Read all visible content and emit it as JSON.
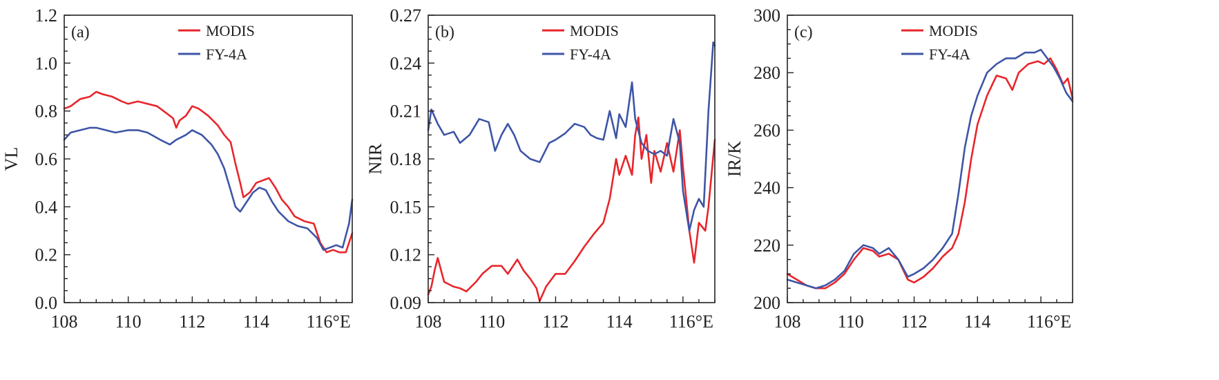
{
  "colors": {
    "modis": "#e8252b",
    "fy4a": "#3d55a6",
    "axis": "#222222"
  },
  "chart_data": [
    {
      "type": "line",
      "panel_label": "(a)",
      "xlabel": "",
      "ylabel": "VL",
      "xlim": [
        108,
        117
      ],
      "ylim": [
        0.0,
        1.2
      ],
      "x_ticks": [
        108,
        110,
        112,
        114,
        116
      ],
      "x_tick_labels": [
        "108",
        "110",
        "112",
        "114",
        "116°E"
      ],
      "y_ticks": [
        0.0,
        0.2,
        0.4,
        0.6,
        0.8,
        1.0,
        1.2
      ],
      "y_tick_labels": [
        "0.0",
        "0.2",
        "0.4",
        "0.6",
        "0.8",
        "1.0",
        "1.2"
      ],
      "grid": false,
      "legend_position": "top-center",
      "series": [
        {
          "name": "MODIS",
          "color": "#e8252b",
          "points": [
            [
              108.0,
              0.81
            ],
            [
              108.2,
              0.82
            ],
            [
              108.5,
              0.85
            ],
            [
              108.8,
              0.86
            ],
            [
              109.0,
              0.88
            ],
            [
              109.2,
              0.87
            ],
            [
              109.5,
              0.86
            ],
            [
              109.8,
              0.84
            ],
            [
              110.0,
              0.83
            ],
            [
              110.3,
              0.84
            ],
            [
              110.6,
              0.83
            ],
            [
              110.9,
              0.82
            ],
            [
              111.2,
              0.79
            ],
            [
              111.4,
              0.77
            ],
            [
              111.5,
              0.73
            ],
            [
              111.6,
              0.76
            ],
            [
              111.8,
              0.78
            ],
            [
              112.0,
              0.82
            ],
            [
              112.2,
              0.81
            ],
            [
              112.5,
              0.78
            ],
            [
              112.8,
              0.74
            ],
            [
              113.0,
              0.7
            ],
            [
              113.2,
              0.67
            ],
            [
              113.35,
              0.58
            ],
            [
              113.5,
              0.5
            ],
            [
              113.6,
              0.44
            ],
            [
              113.8,
              0.46
            ],
            [
              114.0,
              0.5
            ],
            [
              114.2,
              0.51
            ],
            [
              114.4,
              0.52
            ],
            [
              114.6,
              0.48
            ],
            [
              114.8,
              0.43
            ],
            [
              115.0,
              0.4
            ],
            [
              115.2,
              0.36
            ],
            [
              115.5,
              0.34
            ],
            [
              115.8,
              0.33
            ],
            [
              116.0,
              0.25
            ],
            [
              116.2,
              0.21
            ],
            [
              116.4,
              0.22
            ],
            [
              116.6,
              0.21
            ],
            [
              116.8,
              0.21
            ],
            [
              117.0,
              0.29
            ]
          ]
        },
        {
          "name": "FY-4A",
          "color": "#3d55a6",
          "points": [
            [
              108.0,
              0.68
            ],
            [
              108.2,
              0.71
            ],
            [
              108.5,
              0.72
            ],
            [
              108.8,
              0.73
            ],
            [
              109.0,
              0.73
            ],
            [
              109.3,
              0.72
            ],
            [
              109.6,
              0.71
            ],
            [
              110.0,
              0.72
            ],
            [
              110.3,
              0.72
            ],
            [
              110.6,
              0.71
            ],
            [
              111.0,
              0.68
            ],
            [
              111.3,
              0.66
            ],
            [
              111.5,
              0.68
            ],
            [
              111.8,
              0.7
            ],
            [
              112.0,
              0.72
            ],
            [
              112.3,
              0.7
            ],
            [
              112.6,
              0.66
            ],
            [
              112.8,
              0.62
            ],
            [
              113.0,
              0.56
            ],
            [
              113.2,
              0.47
            ],
            [
              113.35,
              0.4
            ],
            [
              113.5,
              0.38
            ],
            [
              113.7,
              0.42
            ],
            [
              113.9,
              0.46
            ],
            [
              114.1,
              0.48
            ],
            [
              114.3,
              0.47
            ],
            [
              114.5,
              0.42
            ],
            [
              114.7,
              0.38
            ],
            [
              115.0,
              0.34
            ],
            [
              115.3,
              0.32
            ],
            [
              115.6,
              0.31
            ],
            [
              115.9,
              0.27
            ],
            [
              116.1,
              0.22
            ],
            [
              116.3,
              0.23
            ],
            [
              116.5,
              0.24
            ],
            [
              116.7,
              0.23
            ],
            [
              116.9,
              0.33
            ],
            [
              117.0,
              0.43
            ]
          ]
        }
      ]
    },
    {
      "type": "line",
      "panel_label": "(b)",
      "xlabel": "",
      "ylabel": "NIR",
      "xlim": [
        108,
        117
      ],
      "ylim": [
        0.09,
        0.27
      ],
      "x_ticks": [
        108,
        110,
        112,
        114,
        116
      ],
      "x_tick_labels": [
        "108",
        "110",
        "112",
        "114",
        "116°E"
      ],
      "y_ticks": [
        0.09,
        0.12,
        0.15,
        0.18,
        0.21,
        0.24,
        0.27
      ],
      "y_tick_labels": [
        "0.09",
        "0.12",
        "0.15",
        "0.18",
        "0.21",
        "0.24",
        "0.27"
      ],
      "grid": false,
      "legend_position": "top-center",
      "series": [
        {
          "name": "MODIS",
          "color": "#e8252b",
          "points": [
            [
              108.0,
              0.095
            ],
            [
              108.1,
              0.1
            ],
            [
              108.2,
              0.11
            ],
            [
              108.3,
              0.118
            ],
            [
              108.5,
              0.103
            ],
            [
              108.8,
              0.1
            ],
            [
              109.0,
              0.099
            ],
            [
              109.2,
              0.097
            ],
            [
              109.5,
              0.103
            ],
            [
              109.7,
              0.108
            ],
            [
              110.0,
              0.113
            ],
            [
              110.3,
              0.113
            ],
            [
              110.5,
              0.108
            ],
            [
              110.8,
              0.117
            ],
            [
              111.0,
              0.11
            ],
            [
              111.2,
              0.105
            ],
            [
              111.4,
              0.099
            ],
            [
              111.5,
              0.091
            ],
            [
              111.7,
              0.1
            ],
            [
              112.0,
              0.108
            ],
            [
              112.3,
              0.108
            ],
            [
              112.6,
              0.116
            ],
            [
              112.9,
              0.125
            ],
            [
              113.2,
              0.133
            ],
            [
              113.5,
              0.14
            ],
            [
              113.7,
              0.155
            ],
            [
              113.9,
              0.18
            ],
            [
              114.0,
              0.17
            ],
            [
              114.2,
              0.182
            ],
            [
              114.4,
              0.17
            ],
            [
              114.5,
              0.195
            ],
            [
              114.6,
              0.206
            ],
            [
              114.7,
              0.18
            ],
            [
              114.85,
              0.195
            ],
            [
              115.0,
              0.165
            ],
            [
              115.1,
              0.185
            ],
            [
              115.3,
              0.172
            ],
            [
              115.5,
              0.19
            ],
            [
              115.7,
              0.172
            ],
            [
              115.9,
              0.198
            ],
            [
              116.0,
              0.175
            ],
            [
              116.2,
              0.135
            ],
            [
              116.35,
              0.115
            ],
            [
              116.5,
              0.14
            ],
            [
              116.7,
              0.135
            ],
            [
              116.8,
              0.15
            ],
            [
              117.0,
              0.192
            ]
          ]
        },
        {
          "name": "FY-4A",
          "color": "#3d55a6",
          "points": [
            [
              108.0,
              0.198
            ],
            [
              108.1,
              0.211
            ],
            [
              108.3,
              0.202
            ],
            [
              108.5,
              0.195
            ],
            [
              108.8,
              0.197
            ],
            [
              109.0,
              0.19
            ],
            [
              109.3,
              0.195
            ],
            [
              109.6,
              0.205
            ],
            [
              109.9,
              0.203
            ],
            [
              110.1,
              0.185
            ],
            [
              110.3,
              0.195
            ],
            [
              110.5,
              0.202
            ],
            [
              110.7,
              0.195
            ],
            [
              110.9,
              0.185
            ],
            [
              111.2,
              0.18
            ],
            [
              111.5,
              0.178
            ],
            [
              111.8,
              0.19
            ],
            [
              112.0,
              0.192
            ],
            [
              112.3,
              0.196
            ],
            [
              112.6,
              0.202
            ],
            [
              112.9,
              0.2
            ],
            [
              113.1,
              0.195
            ],
            [
              113.3,
              0.193
            ],
            [
              113.5,
              0.192
            ],
            [
              113.7,
              0.21
            ],
            [
              113.9,
              0.193
            ],
            [
              114.0,
              0.208
            ],
            [
              114.2,
              0.2
            ],
            [
              114.4,
              0.228
            ],
            [
              114.5,
              0.205
            ],
            [
              114.7,
              0.19
            ],
            [
              114.9,
              0.185
            ],
            [
              115.1,
              0.183
            ],
            [
              115.3,
              0.185
            ],
            [
              115.5,
              0.182
            ],
            [
              115.7,
              0.205
            ],
            [
              115.9,
              0.19
            ],
            [
              116.0,
              0.16
            ],
            [
              116.2,
              0.135
            ],
            [
              116.35,
              0.148
            ],
            [
              116.5,
              0.155
            ],
            [
              116.65,
              0.15
            ],
            [
              116.8,
              0.21
            ],
            [
              116.95,
              0.253
            ],
            [
              117.0,
              0.251
            ]
          ]
        }
      ]
    },
    {
      "type": "line",
      "panel_label": "(c)",
      "xlabel": "",
      "ylabel": "IR/K",
      "xlim": [
        108,
        117
      ],
      "ylim": [
        200,
        300
      ],
      "x_ticks": [
        108,
        110,
        112,
        114,
        116
      ],
      "x_tick_labels": [
        "108",
        "110",
        "112",
        "114",
        "116°E"
      ],
      "y_ticks": [
        200,
        220,
        240,
        260,
        280,
        300
      ],
      "y_tick_labels": [
        "200",
        "220",
        "240",
        "260",
        "280",
        "300"
      ],
      "grid": false,
      "legend_position": "top-center",
      "series": [
        {
          "name": "MODIS",
          "color": "#e8252b",
          "points": [
            [
              108.0,
              210
            ],
            [
              108.3,
              208
            ],
            [
              108.6,
              206
            ],
            [
              108.9,
              205
            ],
            [
              109.2,
              205
            ],
            [
              109.5,
              207
            ],
            [
              109.8,
              210
            ],
            [
              110.1,
              215
            ],
            [
              110.4,
              219
            ],
            [
              110.7,
              218
            ],
            [
              110.9,
              216
            ],
            [
              111.2,
              217
            ],
            [
              111.5,
              215
            ],
            [
              111.8,
              208
            ],
            [
              112.0,
              207
            ],
            [
              112.3,
              209
            ],
            [
              112.6,
              212
            ],
            [
              112.9,
              216
            ],
            [
              113.2,
              219
            ],
            [
              113.4,
              224
            ],
            [
              113.6,
              235
            ],
            [
              113.8,
              250
            ],
            [
              114.0,
              262
            ],
            [
              114.3,
              272
            ],
            [
              114.6,
              279
            ],
            [
              114.9,
              278
            ],
            [
              115.1,
              274
            ],
            [
              115.3,
              280
            ],
            [
              115.6,
              283
            ],
            [
              115.9,
              284
            ],
            [
              116.1,
              283
            ],
            [
              116.3,
              285
            ],
            [
              116.5,
              281
            ],
            [
              116.7,
              276
            ],
            [
              116.85,
              278
            ],
            [
              117.0,
              271
            ]
          ]
        },
        {
          "name": "FY-4A",
          "color": "#3d55a6",
          "points": [
            [
              108.0,
              208
            ],
            [
              108.3,
              207
            ],
            [
              108.6,
              206
            ],
            [
              108.9,
              205
            ],
            [
              109.2,
              206
            ],
            [
              109.5,
              208
            ],
            [
              109.8,
              211
            ],
            [
              110.1,
              217
            ],
            [
              110.4,
              220
            ],
            [
              110.7,
              219
            ],
            [
              110.9,
              217
            ],
            [
              111.2,
              219
            ],
            [
              111.5,
              215
            ],
            [
              111.8,
              209
            ],
            [
              112.0,
              210
            ],
            [
              112.3,
              212
            ],
            [
              112.6,
              215
            ],
            [
              112.9,
              219
            ],
            [
              113.2,
              224
            ],
            [
              113.4,
              238
            ],
            [
              113.6,
              254
            ],
            [
              113.8,
              265
            ],
            [
              114.0,
              272
            ],
            [
              114.3,
              280
            ],
            [
              114.6,
              283
            ],
            [
              114.9,
              285
            ],
            [
              115.2,
              285
            ],
            [
              115.5,
              287
            ],
            [
              115.8,
              287
            ],
            [
              116.0,
              288
            ],
            [
              116.2,
              285
            ],
            [
              116.4,
              282
            ],
            [
              116.6,
              278
            ],
            [
              116.8,
              273
            ],
            [
              117.0,
              270
            ]
          ]
        }
      ]
    }
  ]
}
